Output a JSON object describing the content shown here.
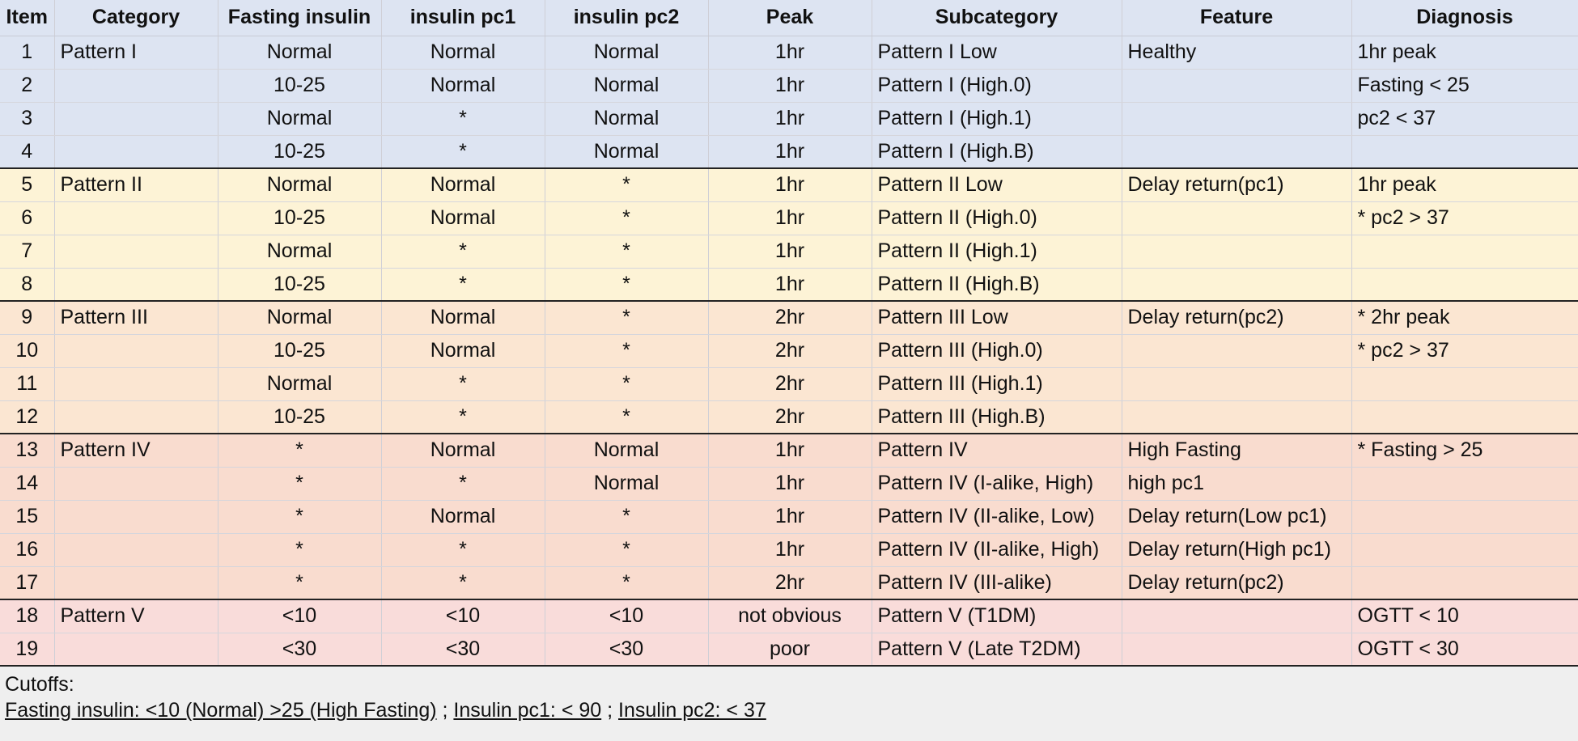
{
  "headers": [
    "Item",
    "Category",
    "Fasting insulin",
    "insulin pc1",
    "insulin pc2",
    "Peak",
    "Subcategory",
    "Feature",
    "Diagnosis"
  ],
  "rows": [
    [
      "1",
      "Pattern I",
      "Normal",
      "Normal",
      "Normal",
      "1hr",
      "Pattern I Low",
      "Healthy",
      "1hr peak"
    ],
    [
      "2",
      "",
      "10-25",
      "Normal",
      "Normal",
      "1hr",
      "Pattern I (High.0)",
      "",
      "Fasting < 25"
    ],
    [
      "3",
      "",
      "Normal",
      "*",
      "Normal",
      "1hr",
      "Pattern I (High.1)",
      "",
      "pc2 < 37"
    ],
    [
      "4",
      "",
      "10-25",
      "*",
      "Normal",
      "1hr",
      "Pattern I (High.B)",
      "",
      ""
    ],
    [
      "5",
      "Pattern II",
      "Normal",
      "Normal",
      "*",
      "1hr",
      "Pattern II Low",
      "Delay return(pc1)",
      "1hr peak"
    ],
    [
      "6",
      "",
      "10-25",
      "Normal",
      "*",
      "1hr",
      "Pattern II (High.0)",
      "",
      "* pc2 > 37"
    ],
    [
      "7",
      "",
      "Normal",
      "*",
      "*",
      "1hr",
      "Pattern II (High.1)",
      "",
      ""
    ],
    [
      "8",
      "",
      "10-25",
      "*",
      "*",
      "1hr",
      "Pattern II (High.B)",
      "",
      ""
    ],
    [
      "9",
      "Pattern III",
      "Normal",
      "Normal",
      "*",
      "2hr",
      "Pattern III Low",
      "Delay return(pc2)",
      "* 2hr peak"
    ],
    [
      "10",
      "",
      "10-25",
      "Normal",
      "*",
      "2hr",
      "Pattern III (High.0)",
      "",
      "* pc2 > 37"
    ],
    [
      "11",
      "",
      "Normal",
      "*",
      "*",
      "2hr",
      "Pattern III (High.1)",
      "",
      ""
    ],
    [
      "12",
      "",
      "10-25",
      "*",
      "*",
      "2hr",
      "Pattern III (High.B)",
      "",
      ""
    ],
    [
      "13",
      "Pattern IV",
      "*",
      "Normal",
      "Normal",
      "1hr",
      "Pattern IV",
      "High Fasting",
      "* Fasting > 25"
    ],
    [
      "14",
      "",
      "*",
      "*",
      "Normal",
      "1hr",
      "Pattern IV (I-alike, High)",
      "high pc1",
      ""
    ],
    [
      "15",
      "",
      "*",
      "Normal",
      "*",
      "1hr",
      "Pattern IV (II-alike, Low)",
      "Delay return(Low pc1)",
      ""
    ],
    [
      "16",
      "",
      "*",
      "*",
      "*",
      "1hr",
      "Pattern IV (II-alike, High)",
      "Delay return(High pc1)",
      ""
    ],
    [
      "17",
      "",
      "*",
      "*",
      "*",
      "2hr",
      "Pattern IV (III-alike)",
      "Delay return(pc2)",
      ""
    ],
    [
      "18",
      "Pattern V",
      "<10",
      "<10",
      "<10",
      "not obvious",
      "Pattern V (T1DM)",
      "",
      "OGTT < 10"
    ],
    [
      "19",
      "",
      "<30",
      "<30",
      "<30",
      "poor",
      "Pattern V (Late T2DM)",
      "",
      "OGTT < 30"
    ]
  ],
  "colors": {
    "pattern_1": "#dde4f2",
    "pattern_2": "#fdf3d6",
    "pattern_3": "#fbe6d2",
    "pattern_4": "#f9dccf",
    "pattern_5": "#f9dcda"
  },
  "footer": {
    "title": "Cutoffs:",
    "fasting": "Fasting insulin: <10 (Normal) >25 (High Fasting)",
    "sep1": " ; ",
    "pc1": "Insulin pc1: < 90",
    "sep2": " ; ",
    "pc2": "Insulin pc2: < 37"
  }
}
